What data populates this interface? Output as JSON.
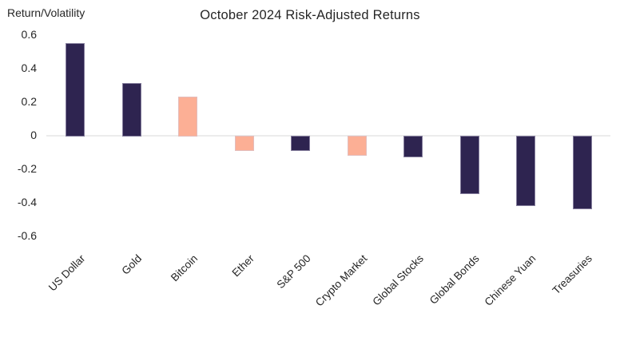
{
  "chart_data": {
    "type": "bar",
    "title": "October 2024 Risk-Adjusted Returns",
    "ylabel": "Return/Volatility",
    "xlabel": "",
    "categories": [
      "US Dollar",
      "Gold",
      "Bitcoin",
      "Ether",
      "S&P 500",
      "Crypto Market",
      "Global Stocks",
      "Global Bonds",
      "Chinese Yuan",
      "Treasuries"
    ],
    "values": [
      0.55,
      0.31,
      0.23,
      -0.08,
      -0.08,
      -0.11,
      -0.12,
      -0.34,
      -0.41,
      -0.43
    ],
    "bar_colors": [
      "navy",
      "navy",
      "salmon",
      "salmon",
      "navy",
      "salmon",
      "navy",
      "navy",
      "navy",
      "navy"
    ],
    "palette": {
      "navy": "#2E2450",
      "salmon": "#FCAF95",
      "gridline": "#ECECEC",
      "text": "#262626"
    },
    "yticks": [
      {
        "label": "0.6",
        "value": 0.6
      },
      {
        "label": "0.4",
        "value": 0.4
      },
      {
        "label": "0.2",
        "value": 0.2
      },
      {
        "label": "0",
        "value": 0.0
      },
      {
        "label": "-0.2",
        "value": -0.2
      },
      {
        "label": "-0.4",
        "value": -0.4
      },
      {
        "label": "-0.6",
        "value": -0.6
      }
    ],
    "ylim": [
      -0.6,
      0.6
    ],
    "grid": "zero-line-only",
    "legend_position": "none"
  }
}
